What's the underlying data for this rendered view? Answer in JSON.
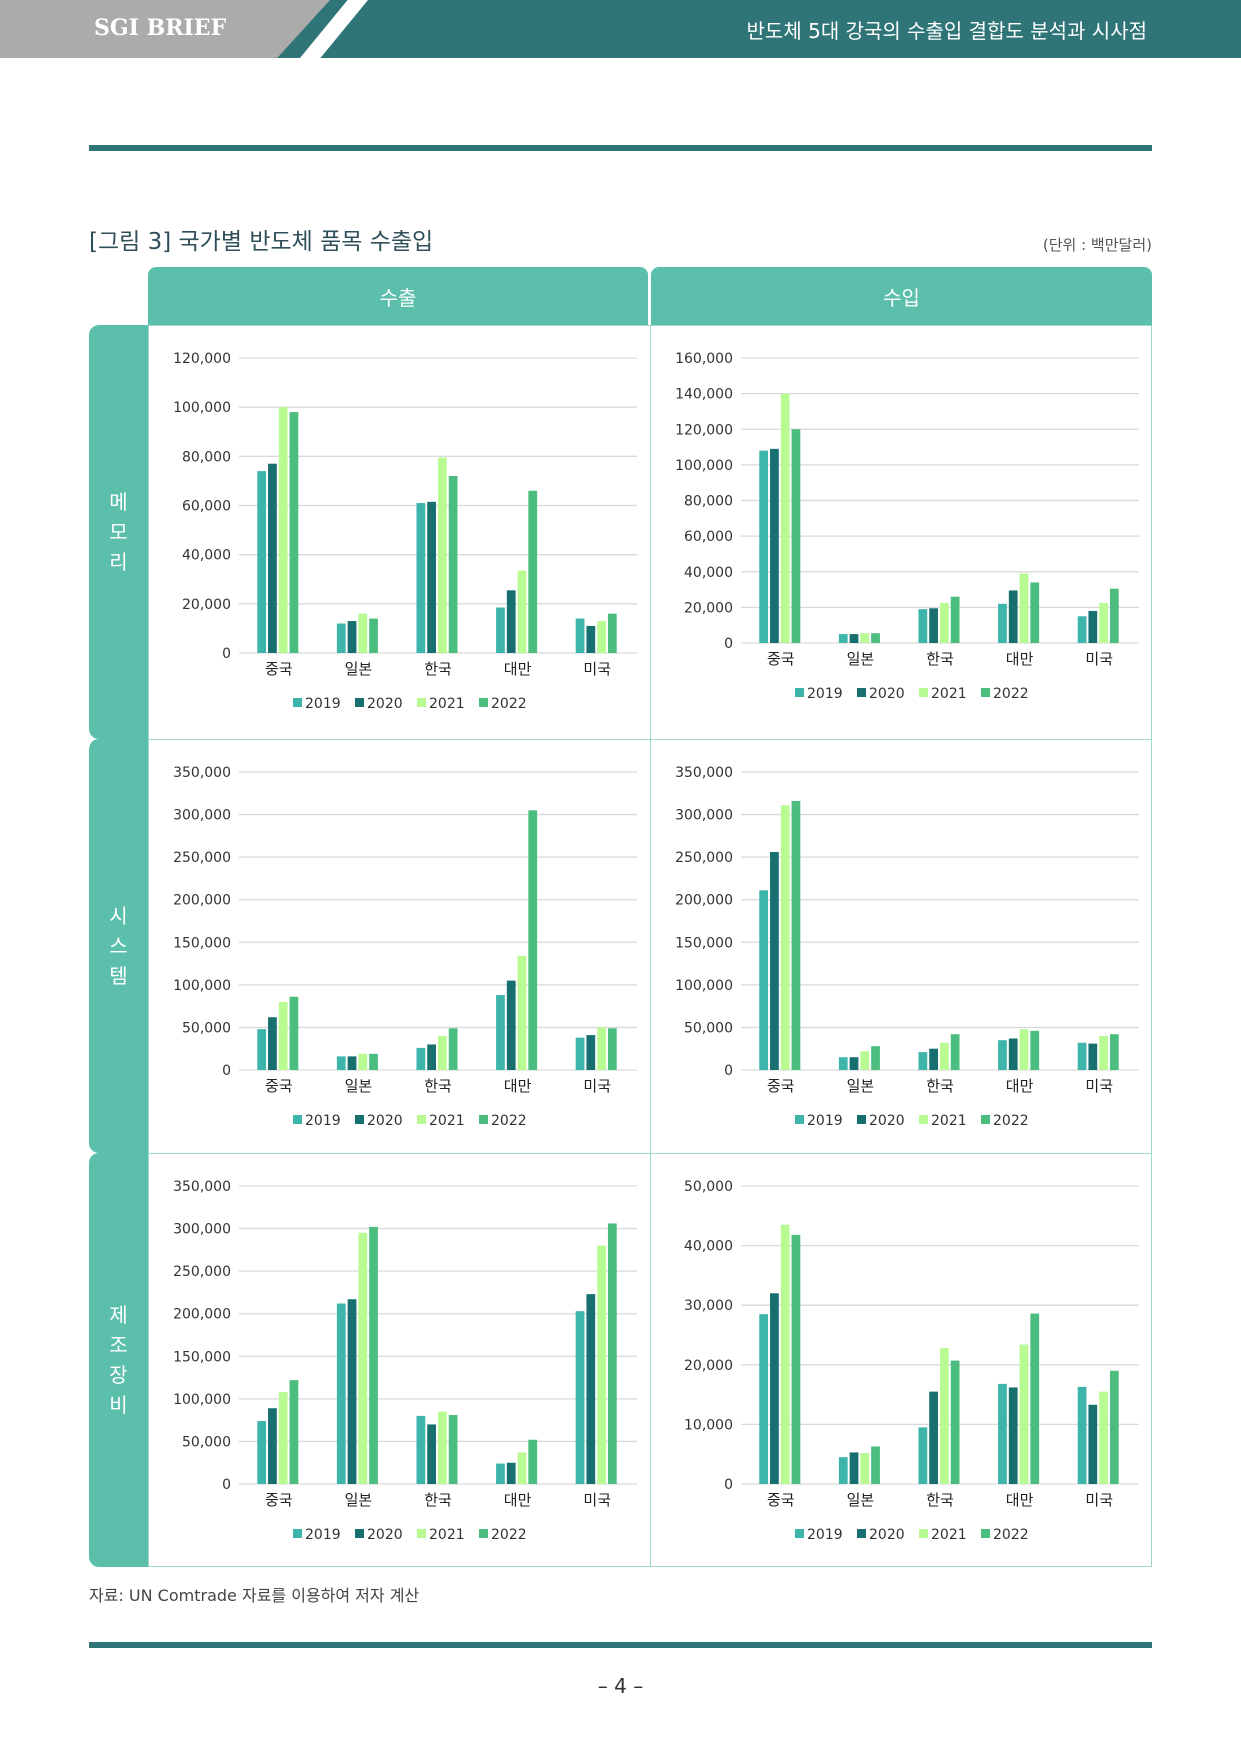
{
  "header": {
    "brand": "SGI BRIEF",
    "title": "반도체 5대 강국의 수출입 결합도 분석과 시사점"
  },
  "figure": {
    "title": "[그림 3] 국가별 반도체 품목 수출입",
    "unit": "(단위 : 백만달러)",
    "columns": [
      "수출",
      "수입"
    ],
    "rows": [
      "메모리",
      "시스템",
      "제조장비"
    ]
  },
  "colors": {
    "2019": "#3db5ab",
    "2020": "#17706f",
    "2021": "#b8fb93",
    "2022": "#4bbd7e"
  },
  "chart_data": [
    {
      "type": "bar",
      "title": "메모리 수출",
      "categories": [
        "중국",
        "일본",
        "한국",
        "대만",
        "미국"
      ],
      "ylim": [
        0,
        120000
      ],
      "yticks": [
        "0",
        "20,000",
        "40,000",
        "60,000",
        "80,000",
        "100,000",
        "120,000"
      ],
      "series": [
        {
          "name": "2019",
          "values": [
            74000,
            12000,
            61000,
            18500,
            14000
          ]
        },
        {
          "name": "2020",
          "values": [
            77000,
            13000,
            61500,
            25500,
            11000
          ]
        },
        {
          "name": "2021",
          "values": [
            100000,
            16000,
            79500,
            33500,
            13000
          ]
        },
        {
          "name": "2022",
          "values": [
            98000,
            14000,
            72000,
            66000,
            16000
          ]
        }
      ]
    },
    {
      "type": "bar",
      "title": "메모리 수입",
      "categories": [
        "중국",
        "일본",
        "한국",
        "대만",
        "미국"
      ],
      "ylim": [
        0,
        160000
      ],
      "yticks": [
        "0",
        "20,000",
        "40,000",
        "60,000",
        "80,000",
        "100,000",
        "120,000",
        "140,000",
        "160,000"
      ],
      "series": [
        {
          "name": "2019",
          "values": [
            108000,
            5000,
            19000,
            22000,
            15000
          ]
        },
        {
          "name": "2020",
          "values": [
            109000,
            5000,
            19500,
            29500,
            18000
          ]
        },
        {
          "name": "2021",
          "values": [
            140000,
            5500,
            22500,
            39000,
            22500
          ]
        },
        {
          "name": "2022",
          "values": [
            120000,
            5500,
            26000,
            34000,
            30500
          ]
        }
      ]
    },
    {
      "type": "bar",
      "title": "시스템 수출",
      "categories": [
        "중국",
        "일본",
        "한국",
        "대만",
        "미국"
      ],
      "ylim": [
        0,
        350000
      ],
      "yticks": [
        "0",
        "50,000",
        "100,000",
        "150,000",
        "200,000",
        "250,000",
        "300,000",
        "350,000"
      ],
      "series": [
        {
          "name": "2019",
          "values": [
            48000,
            16000,
            26000,
            88000,
            38000
          ]
        },
        {
          "name": "2020",
          "values": [
            62000,
            16000,
            30000,
            105000,
            41000
          ]
        },
        {
          "name": "2021",
          "values": [
            80000,
            19000,
            40000,
            134000,
            50000
          ]
        },
        {
          "name": "2022",
          "values": [
            86000,
            19000,
            49000,
            305000,
            49000
          ]
        }
      ]
    },
    {
      "type": "bar",
      "title": "시스템 수입",
      "categories": [
        "중국",
        "일본",
        "한국",
        "대만",
        "미국"
      ],
      "ylim": [
        0,
        350000
      ],
      "yticks": [
        "0",
        "50,000",
        "100,000",
        "150,000",
        "200,000",
        "250,000",
        "300,000",
        "350,000"
      ],
      "series": [
        {
          "name": "2019",
          "values": [
            211000,
            15000,
            21000,
            35000,
            32000
          ]
        },
        {
          "name": "2020",
          "values": [
            256000,
            15000,
            25000,
            37000,
            31000
          ]
        },
        {
          "name": "2021",
          "values": [
            311000,
            22000,
            32000,
            48000,
            40000
          ]
        },
        {
          "name": "2022",
          "values": [
            316000,
            28000,
            42000,
            46000,
            42000
          ]
        }
      ]
    },
    {
      "type": "bar",
      "title": "제조장비 수출",
      "categories": [
        "중국",
        "일본",
        "한국",
        "대만",
        "미국"
      ],
      "ylim": [
        0,
        350000
      ],
      "yticks": [
        "0",
        "50,000",
        "100,000",
        "150,000",
        "200,000",
        "250,000",
        "300,000",
        "350,000"
      ],
      "series": [
        {
          "name": "2019",
          "values": [
            74000,
            212000,
            80000,
            24000,
            203000
          ]
        },
        {
          "name": "2020",
          "values": [
            89000,
            217000,
            70000,
            25000,
            223000
          ]
        },
        {
          "name": "2021",
          "values": [
            108000,
            295000,
            85000,
            37000,
            280000
          ]
        },
        {
          "name": "2022",
          "values": [
            122000,
            302000,
            81000,
            52000,
            306000
          ]
        }
      ]
    },
    {
      "type": "bar",
      "title": "제조장비 수입",
      "categories": [
        "중국",
        "일본",
        "한국",
        "대만",
        "미국"
      ],
      "ylim": [
        0,
        50000
      ],
      "yticks": [
        "0",
        "10,000",
        "20,000",
        "30,000",
        "40,000",
        "50,000"
      ],
      "series": [
        {
          "name": "2019",
          "values": [
            28500,
            4500,
            9500,
            16800,
            16300
          ]
        },
        {
          "name": "2020",
          "values": [
            32000,
            5300,
            15500,
            16200,
            13300
          ]
        },
        {
          "name": "2021",
          "values": [
            43500,
            5200,
            22800,
            23400,
            15500
          ]
        },
        {
          "name": "2022",
          "values": [
            41800,
            6300,
            20700,
            28600,
            19000
          ]
        }
      ]
    }
  ],
  "source": "자료: UN Comtrade 자료를 이용하여 저자 계산",
  "page": "–  4 –"
}
